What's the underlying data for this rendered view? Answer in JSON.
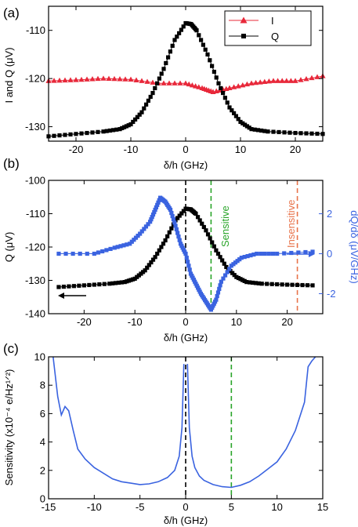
{
  "colors": {
    "black": "#000000",
    "red": "#e8283a",
    "blue": "#3a63e0",
    "green": "#2aa52a",
    "orange": "#e8734a"
  },
  "chart_data": [
    {
      "panel": "(a)",
      "type": "line",
      "xlabel": "δ/h (GHz)",
      "ylabel": "I and Q (μV)",
      "xlim": [
        -25,
        25
      ],
      "ylim": [
        -133,
        -105
      ],
      "xticks": [
        -20,
        -10,
        0,
        10,
        20
      ],
      "yticks": [
        -130,
        -120,
        -110
      ],
      "legend": {
        "position": "top-right",
        "entries": [
          "I",
          "Q"
        ]
      },
      "series": [
        {
          "name": "I",
          "color": "#e8283a",
          "marker": "triangle",
          "x": [
            -25,
            -20,
            -15,
            -10,
            -5,
            0,
            3,
            5,
            8,
            12,
            16,
            20,
            25
          ],
          "y": [
            -120.5,
            -120.3,
            -120.0,
            -120.2,
            -121.0,
            -121.0,
            -122.0,
            -122.8,
            -122.0,
            -121.0,
            -120.5,
            -120.5,
            -119.5
          ]
        },
        {
          "name": "Q",
          "color": "#000000",
          "marker": "square",
          "x": [
            -25,
            -20,
            -15,
            -12,
            -10,
            -8,
            -6,
            -4,
            -2,
            0,
            1,
            2,
            4,
            6,
            8,
            10,
            12,
            15,
            20,
            25
          ],
          "y": [
            -132,
            -131.5,
            -131,
            -130.5,
            -129.5,
            -127,
            -123,
            -118,
            -112,
            -108.5,
            -108.7,
            -110,
            -115,
            -121,
            -126,
            -129,
            -130.5,
            -131,
            -131.3,
            -131.5
          ]
        }
      ]
    },
    {
      "panel": "(b)",
      "type": "line",
      "xlabel": "δ/h (GHz)",
      "ylabel": "Q (μV)",
      "y2label": "dQ/dδ  (μV/GHz)",
      "xlim": [
        -27,
        27
      ],
      "ylim": [
        -140,
        -100
      ],
      "y2lim": [
        -3,
        3.67
      ],
      "xticks": [
        -20,
        -10,
        0,
        10,
        20
      ],
      "yticks": [
        -140,
        -130,
        -120,
        -110,
        -100
      ],
      "y2ticks": [
        -2,
        0,
        2
      ],
      "vlines": [
        {
          "x": 0,
          "color": "#000000",
          "label": ""
        },
        {
          "x": 5,
          "color": "#2aa52a",
          "label": "Sensitive"
        },
        {
          "x": 22,
          "color": "#e8734a",
          "label": "Insensitive"
        }
      ],
      "series": [
        {
          "name": "Q",
          "color": "#000000",
          "marker": "square",
          "axis": "left",
          "x": [
            -25,
            -20,
            -15,
            -12,
            -10,
            -8,
            -6,
            -4,
            -2,
            0,
            1,
            2,
            4,
            6,
            8,
            10,
            12,
            15,
            20,
            25
          ],
          "y": [
            -132,
            -131.5,
            -131,
            -130.5,
            -129.5,
            -127,
            -123,
            -118,
            -112,
            -108.5,
            -108.7,
            -110,
            -115,
            -121,
            -126,
            -129,
            -130.5,
            -131,
            -131.3,
            -131.5
          ]
        },
        {
          "name": "dQ/dδ",
          "color": "#3a63e0",
          "marker": "square",
          "axis": "right",
          "x": [
            -25,
            -18,
            -14,
            -11,
            -9,
            -7,
            -6,
            -5,
            -4,
            -3,
            -2,
            -1,
            0,
            1,
            2,
            3,
            4,
            5,
            6,
            7,
            9,
            11,
            14,
            18,
            25
          ],
          "y": [
            0,
            0,
            0.3,
            0.5,
            1.0,
            1.6,
            2.2,
            2.8,
            2.6,
            2.2,
            1.4,
            0.5,
            0,
            -1.0,
            -1.5,
            -2.0,
            -2.4,
            -2.8,
            -2.3,
            -1.4,
            -0.6,
            -0.2,
            0,
            0,
            0.1
          ]
        }
      ]
    },
    {
      "panel": "(c)",
      "type": "line",
      "xlabel": "δ/h (GHz)",
      "ylabel": "Sensitivity (x10⁻⁴ e/Hz¹ᐟ²)",
      "xlim": [
        -15,
        15
      ],
      "ylim": [
        0,
        10
      ],
      "xticks": [
        -15,
        -10,
        -5,
        0,
        5,
        10,
        15
      ],
      "yticks": [
        0,
        2,
        4,
        6,
        8,
        10
      ],
      "vlines": [
        {
          "x": 0,
          "color": "#000000"
        },
        {
          "x": 5,
          "color": "#2aa52a"
        }
      ],
      "series": [
        {
          "name": "",
          "color": "#3a63e0",
          "axis": "left",
          "segments": [
            {
              "x": [
                -14.5,
                -14.0,
                -13.6,
                -13.2,
                -12.8,
                -12.3,
                -11.8,
                -11.0,
                -10.0,
                -9.0,
                -8.0,
                -7.0,
                -6.0,
                -5.0,
                -4.0,
                -3.0,
                -2.0,
                -1.2,
                -0.7,
                -0.4,
                -0.2
              ],
              "y": [
                10,
                7.2,
                5.9,
                6.5,
                6.2,
                4.8,
                3.5,
                2.8,
                2.2,
                1.8,
                1.4,
                1.2,
                1.1,
                1.0,
                1.05,
                1.2,
                1.5,
                2.0,
                3.0,
                5.0,
                9.5
              ]
            },
            {
              "x": [
                0.2,
                0.4,
                0.7,
                1.0,
                1.5,
                2.0,
                3.0,
                4.0,
                5.0,
                6.0,
                7.0,
                8.0,
                9.0,
                10.0,
                11.0,
                12.0,
                13.0,
                13.4,
                13.8,
                14.2
              ],
              "y": [
                9.5,
                5.0,
                3.0,
                2.2,
                1.6,
                1.3,
                1.0,
                0.85,
                0.8,
                0.95,
                1.2,
                1.6,
                2.1,
                2.6,
                3.5,
                4.8,
                6.8,
                9.3,
                9.7,
                10
              ]
            }
          ]
        }
      ]
    }
  ]
}
